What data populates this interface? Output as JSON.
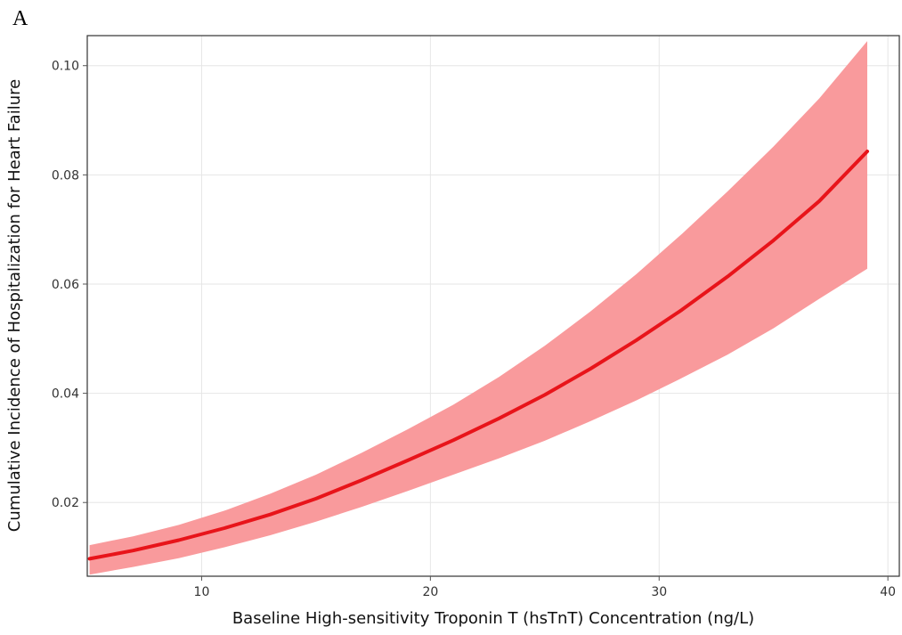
{
  "panel_label": "A",
  "chart_data": {
    "type": "line",
    "title": "",
    "xlabel": "Baseline High-sensitivity Troponin T (hsTnT) Concentration (ng/L)",
    "ylabel": "Cumulative Incidence of Hospitalization for Heart Failure",
    "xlim": [
      5,
      40.5
    ],
    "ylim": [
      0.0065,
      0.1055
    ],
    "x_ticks": [
      10,
      20,
      30,
      40
    ],
    "x_tick_labels": [
      "10",
      "20",
      "30",
      "40"
    ],
    "y_ticks": [
      0.02,
      0.04,
      0.06,
      0.08,
      0.1
    ],
    "y_tick_labels": [
      "0.02",
      "0.04",
      "0.06",
      "0.08",
      "0.10"
    ],
    "grid": true,
    "colors": {
      "line": "#e8141a",
      "band": "#f99a9c"
    },
    "series": [
      {
        "x": [
          5.1,
          7,
          9,
          11,
          13,
          15,
          17,
          19,
          21,
          23,
          25,
          27,
          29,
          31,
          33,
          35,
          37,
          39.1
        ],
        "y": [
          0.0097,
          0.0112,
          0.0131,
          0.0153,
          0.0178,
          0.0207,
          0.0241,
          0.0277,
          0.0314,
          0.0354,
          0.0397,
          0.0445,
          0.0497,
          0.0553,
          0.0614,
          0.068,
          0.0752,
          0.0843
        ],
        "lower": [
          0.0068,
          0.0082,
          0.0098,
          0.0118,
          0.014,
          0.0165,
          0.0192,
          0.0221,
          0.0251,
          0.0281,
          0.0313,
          0.0349,
          0.0387,
          0.0428,
          0.0471,
          0.0519,
          0.0573,
          0.0628
        ],
        "upper": [
          0.0122,
          0.0138,
          0.0159,
          0.0185,
          0.0216,
          0.0251,
          0.0291,
          0.0334,
          0.0379,
          0.043,
          0.0487,
          0.055,
          0.0618,
          0.0692,
          0.077,
          0.0852,
          0.094,
          0.1045
        ]
      }
    ]
  }
}
